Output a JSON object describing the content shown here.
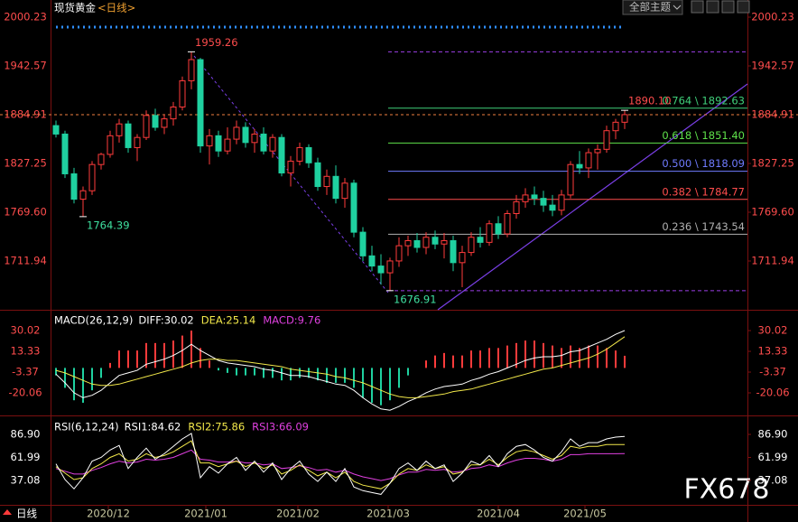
{
  "header": {
    "title": "现货黄金",
    "title_suffix": "<日线>",
    "button": "全部主题",
    "period_label": "日线",
    "watermark": "FX678"
  },
  "chart_data": [
    {
      "type": "candlestick",
      "up_color": "#ff3b3b",
      "down_color": "#1fd1a0",
      "x": [
        0,
        1,
        2,
        3,
        4,
        5,
        6,
        7,
        8,
        9,
        10,
        11,
        12,
        13,
        14,
        15,
        16,
        17,
        18,
        19,
        20,
        21,
        22,
        23,
        24,
        25,
        26,
        27,
        28,
        29,
        30,
        31,
        32,
        33,
        34,
        35,
        36,
        37,
        38,
        39,
        40,
        41,
        42,
        43,
        44,
        45,
        46,
        47,
        48,
        49,
        50,
        51,
        52,
        53,
        54,
        55,
        56,
        57,
        58,
        59,
        60,
        61,
        62,
        63
      ],
      "ohlc": [
        [
          1872,
          1878,
          1858,
          1862
        ],
        [
          1862,
          1866,
          1810,
          1815
        ],
        [
          1815,
          1822,
          1780,
          1785
        ],
        [
          1785,
          1800,
          1764.39,
          1795
        ],
        [
          1795,
          1830,
          1790,
          1826
        ],
        [
          1826,
          1840,
          1820,
          1838
        ],
        [
          1838,
          1866,
          1834,
          1860
        ],
        [
          1860,
          1880,
          1852,
          1874
        ],
        [
          1874,
          1878,
          1840,
          1846
        ],
        [
          1846,
          1862,
          1830,
          1858
        ],
        [
          1858,
          1890,
          1855,
          1884
        ],
        [
          1884,
          1892,
          1866,
          1870
        ],
        [
          1870,
          1885,
          1862,
          1880
        ],
        [
          1880,
          1900,
          1872,
          1894
        ],
        [
          1894,
          1930,
          1890,
          1925
        ],
        [
          1925,
          1959.26,
          1915,
          1950
        ],
        [
          1950,
          1952,
          1840,
          1848
        ],
        [
          1848,
          1868,
          1826,
          1860
        ],
        [
          1860,
          1866,
          1835,
          1842
        ],
        [
          1842,
          1870,
          1838,
          1856
        ],
        [
          1856,
          1878,
          1850,
          1870
        ],
        [
          1870,
          1876,
          1846,
          1852
        ],
        [
          1852,
          1868,
          1840,
          1862
        ],
        [
          1862,
          1870,
          1838,
          1842
        ],
        [
          1842,
          1862,
          1834,
          1858
        ],
        [
          1858,
          1862,
          1812,
          1816
        ],
        [
          1816,
          1836,
          1800,
          1830
        ],
        [
          1830,
          1852,
          1825,
          1846
        ],
        [
          1846,
          1850,
          1822,
          1828
        ],
        [
          1828,
          1834,
          1795,
          1800
        ],
        [
          1800,
          1820,
          1790,
          1812
        ],
        [
          1812,
          1825,
          1780,
          1786
        ],
        [
          1786,
          1810,
          1775,
          1804
        ],
        [
          1804,
          1808,
          1740,
          1746
        ],
        [
          1746,
          1752,
          1712,
          1718
        ],
        [
          1718,
          1730,
          1700,
          1706
        ],
        [
          1706,
          1720,
          1684,
          1698
        ],
        [
          1698,
          1716,
          1676.91,
          1712
        ],
        [
          1712,
          1740,
          1705,
          1730
        ],
        [
          1730,
          1742,
          1718,
          1736
        ],
        [
          1736,
          1745,
          1722,
          1728
        ],
        [
          1728,
          1746,
          1720,
          1740
        ],
        [
          1740,
          1748,
          1726,
          1732
        ],
        [
          1732,
          1745,
          1715,
          1736
        ],
        [
          1736,
          1742,
          1700,
          1710
        ],
        [
          1710,
          1730,
          1681,
          1722
        ],
        [
          1722,
          1746,
          1718,
          1740
        ],
        [
          1740,
          1752,
          1728,
          1734
        ],
        [
          1734,
          1760,
          1730,
          1756
        ],
        [
          1756,
          1765,
          1738,
          1744
        ],
        [
          1744,
          1772,
          1740,
          1768
        ],
        [
          1768,
          1790,
          1762,
          1782
        ],
        [
          1782,
          1798,
          1775,
          1790
        ],
        [
          1790,
          1800,
          1778,
          1786
        ],
        [
          1786,
          1795,
          1770,
          1778
        ],
        [
          1778,
          1790,
          1765,
          1772
        ],
        [
          1772,
          1796,
          1766,
          1790
        ],
        [
          1790,
          1830,
          1786,
          1826
        ],
        [
          1826,
          1842,
          1815,
          1822
        ],
        [
          1822,
          1845,
          1810,
          1840
        ],
        [
          1840,
          1850,
          1820,
          1844
        ],
        [
          1844,
          1872,
          1840,
          1866
        ],
        [
          1866,
          1880,
          1856,
          1876
        ],
        [
          1876,
          1890.1,
          1868,
          1885
        ]
      ],
      "xlim": [
        -6.2,
        76.6
      ],
      "xticks": [
        {
          "value": 5.8,
          "label": "2020/12"
        },
        {
          "value": 16.6,
          "label": "2021/01"
        },
        {
          "value": 26.8,
          "label": "2021/02"
        },
        {
          "value": 36.8,
          "label": "2021/03"
        },
        {
          "value": 49,
          "label": "2021/04"
        },
        {
          "value": 58.6,
          "label": "2021/05"
        }
      ],
      "ylim": [
        1654.3,
        2020.5
      ],
      "yticks": [
        2000.23,
        1942.57,
        1884.91,
        1827.25,
        {
          "value": 1769.6,
          "label": "1769.60"
        },
        1711.94
      ],
      "last_price": 1884.91,
      "annotations": [
        {
          "x": 15,
          "value": 1959.26,
          "label": "1959.26",
          "color": "#ff4d4d"
        },
        {
          "x": 3,
          "value": 1764.39,
          "label": "1764.39",
          "color": "#3fe0a0"
        },
        {
          "x": 37,
          "value": 1676.91,
          "label": "1676.91",
          "color": "#3fe0a0"
        },
        {
          "x": 63,
          "value": 1890.1,
          "label": "1890.10",
          "color": "#ff4d4d"
        }
      ],
      "levels": [
        {
          "value": 1959.26,
          "color": "#9b3fe6",
          "style": "dashed"
        },
        {
          "value": 1892.63,
          "label": "0.764 \\ 1892.63",
          "color": "#3fd07a"
        },
        {
          "value": 1851.4,
          "label": "0.618 \\ 1851.40",
          "color": "#5ee04a"
        },
        {
          "value": 1818.09,
          "label": "0.500 \\ 1818.09",
          "color": "#6f7bff"
        },
        {
          "value": 1784.77,
          "label": "0.382 \\ 1784.77",
          "color": "#ff4d4d"
        },
        {
          "value": 1743.54,
          "label": "0.236 \\ 1743.54",
          "color": "#b0b0b0"
        },
        {
          "value": 1676.91,
          "color": "#9b3fe6",
          "style": "dashed"
        }
      ]
    },
    {
      "type": "macd",
      "title": "MACD(26,12,9)",
      "ylim": [
        -38.2,
        45.3
      ],
      "yticks": [
        30.02,
        13.33,
        -3.37,
        -20.06
      ],
      "up_color": "#ff3b3b",
      "down_color": "#1fd1a0",
      "series": [
        {
          "name": "DIFF:30.02",
          "kind": "line",
          "color": "#ffffff",
          "values": [
            -5,
            -12,
            -20,
            -24,
            -22,
            -18,
            -12,
            -6,
            -4,
            -2,
            3,
            5,
            7,
            10,
            14,
            19,
            14,
            10,
            6,
            4,
            3,
            2,
            1,
            -1,
            -2,
            -4,
            -6,
            -6,
            -7,
            -9,
            -11,
            -13,
            -14,
            -18,
            -24,
            -29,
            -33,
            -34,
            -31,
            -27,
            -24,
            -20,
            -17,
            -15,
            -14,
            -13,
            -10,
            -8,
            -5,
            -3,
            0,
            3,
            6,
            8,
            9,
            9,
            10,
            13,
            14,
            17,
            20,
            23,
            27,
            30.02
          ]
        },
        {
          "name": "DEA:25.14",
          "kind": "line",
          "color": "#f2e84a",
          "values": [
            -2,
            -4,
            -7,
            -10,
            -13,
            -14,
            -14,
            -13,
            -11,
            -9,
            -7,
            -5,
            -3,
            -1,
            1,
            4,
            6,
            7,
            7,
            6,
            6,
            5,
            4,
            3,
            2,
            1,
            -1,
            -2,
            -3,
            -4,
            -5,
            -7,
            -8,
            -10,
            -12,
            -15,
            -18,
            -21,
            -23,
            -24,
            -24,
            -23,
            -22,
            -21,
            -19,
            -18,
            -17,
            -15,
            -13,
            -11,
            -9,
            -7,
            -5,
            -3,
            -1,
            0,
            2,
            4,
            6,
            8,
            11,
            15,
            20,
            25.14
          ]
        },
        {
          "name": "MACD:9.76",
          "kind": "bar",
          "color": "#e040e0",
          "values": [
            -6,
            -16,
            -26,
            -28,
            -18,
            -8,
            4,
            14,
            14,
            14,
            20,
            20,
            20,
            22,
            26,
            30,
            16,
            6,
            -2,
            -4,
            -6,
            -6,
            -6,
            -8,
            -8,
            -10,
            -10,
            -8,
            -8,
            -10,
            -12,
            -12,
            -12,
            -16,
            -24,
            -28,
            -30,
            -26,
            -16,
            -6,
            0,
            6,
            10,
            12,
            10,
            10,
            14,
            14,
            16,
            16,
            18,
            20,
            22,
            22,
            20,
            18,
            16,
            18,
            16,
            18,
            18,
            16,
            14,
            9.76
          ]
        }
      ]
    },
    {
      "type": "line",
      "title": "RSI(6,12,24)",
      "ylim": [
        17.5,
        104.5
      ],
      "yticks": [
        {
          "value": 86.9,
          "label": "86.90"
        },
        61.99,
        37.08
      ],
      "series": [
        {
          "name": "RSI1:84.62",
          "color": "#ffffff",
          "values": [
            55,
            38,
            28,
            40,
            58,
            62,
            70,
            75,
            50,
            62,
            72,
            60,
            66,
            74,
            82,
            88,
            40,
            52,
            45,
            55,
            62,
            48,
            58,
            46,
            56,
            38,
            50,
            58,
            44,
            36,
            46,
            36,
            50,
            30,
            26,
            24,
            22,
            34,
            50,
            56,
            48,
            58,
            50,
            54,
            36,
            45,
            58,
            54,
            64,
            52,
            66,
            74,
            76,
            70,
            62,
            58,
            68,
            82,
            74,
            78,
            78,
            82,
            84,
            84.62
          ]
        },
        {
          "name": "RSI2:75.86",
          "color": "#f2e84a",
          "values": [
            52,
            45,
            38,
            40,
            50,
            55,
            62,
            66,
            58,
            60,
            66,
            62,
            64,
            68,
            74,
            80,
            56,
            56,
            52,
            55,
            58,
            52,
            56,
            50,
            54,
            44,
            48,
            54,
            48,
            42,
            46,
            40,
            46,
            36,
            32,
            30,
            28,
            34,
            44,
            50,
            48,
            54,
            50,
            52,
            44,
            46,
            54,
            54,
            60,
            54,
            62,
            68,
            70,
            68,
            64,
            60,
            64,
            74,
            72,
            74,
            74,
            76,
            76,
            75.86
          ]
        },
        {
          "name": "RSI3:66.09",
          "color": "#e040e0",
          "values": [
            50,
            47,
            44,
            44,
            48,
            51,
            55,
            58,
            56,
            57,
            60,
            59,
            60,
            62,
            66,
            70,
            60,
            59,
            57,
            57,
            58,
            56,
            56,
            54,
            55,
            50,
            51,
            53,
            51,
            48,
            49,
            46,
            48,
            44,
            41,
            39,
            37,
            39,
            43,
            46,
            46,
            49,
            48,
            49,
            46,
            47,
            50,
            51,
            54,
            52,
            56,
            59,
            61,
            61,
            60,
            58,
            60,
            65,
            65,
            66,
            66,
            66,
            66,
            66.09
          ]
        }
      ]
    }
  ]
}
